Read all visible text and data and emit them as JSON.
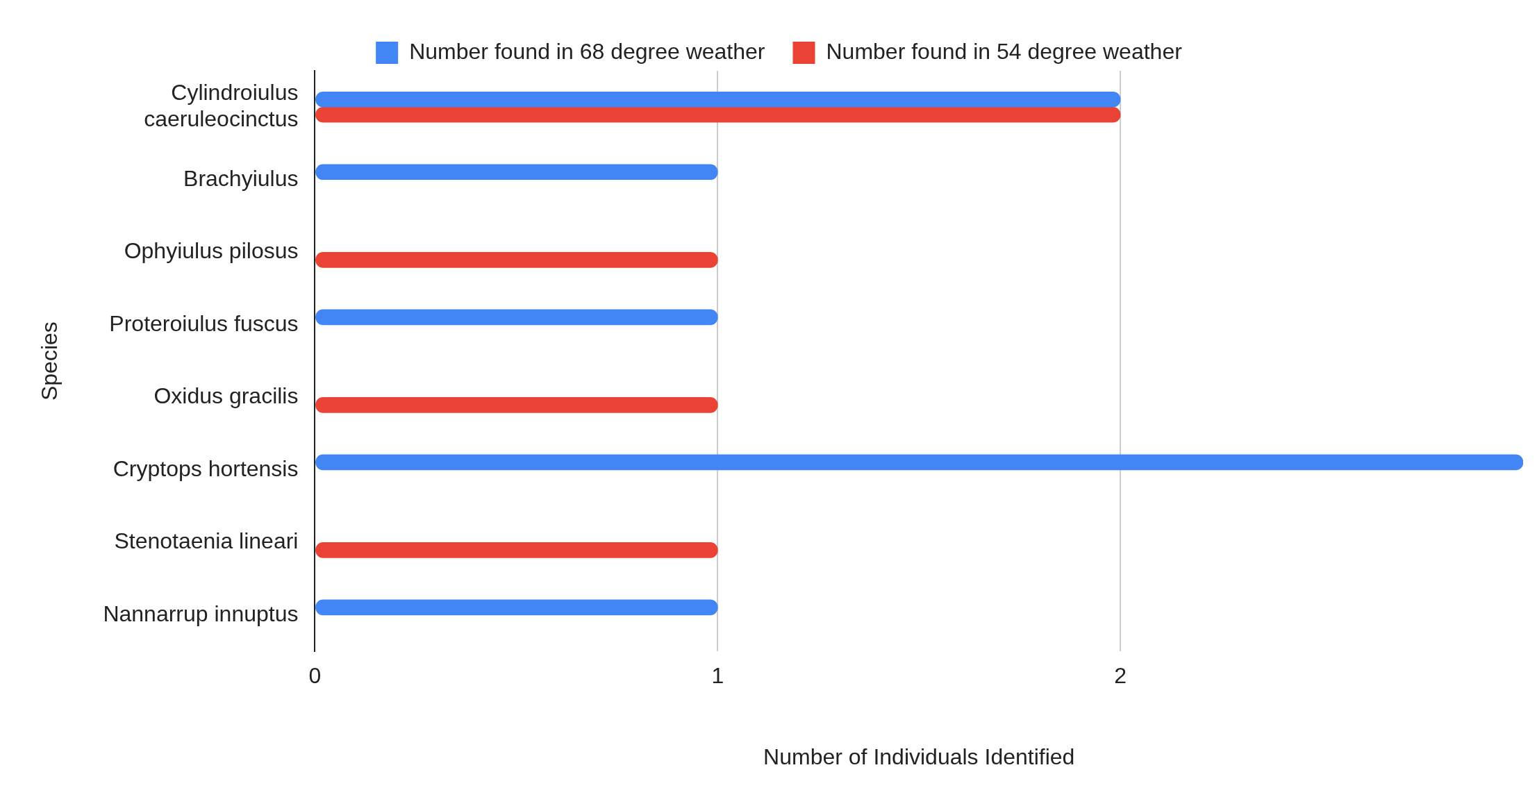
{
  "chart_data": {
    "type": "bar",
    "orientation": "horizontal",
    "xlabel": "Number of Individuals Identified",
    "ylabel": "Species",
    "categories": [
      "Cylindroiulus caeruleocinctus",
      "Brachyiulus",
      "Ophyiulus pilosus",
      "Proteroiulus fuscus",
      "Oxidus gracilis",
      "Cryptops hortensis",
      "Stenotaenia lineari",
      "Nannarrup innuptus"
    ],
    "series": [
      {
        "name": "Number found in 68 degree weather",
        "color": "#4285f4",
        "values": [
          2,
          1,
          null,
          1,
          null,
          3,
          null,
          1
        ]
      },
      {
        "name": "Number found in 54 degree weather",
        "color": "#ea4335",
        "values": [
          2,
          null,
          1,
          null,
          1,
          null,
          1,
          null
        ]
      }
    ],
    "xlim": [
      0,
      3
    ],
    "xticks": [
      0,
      1,
      2
    ],
    "grid": "x",
    "legend": "top"
  }
}
